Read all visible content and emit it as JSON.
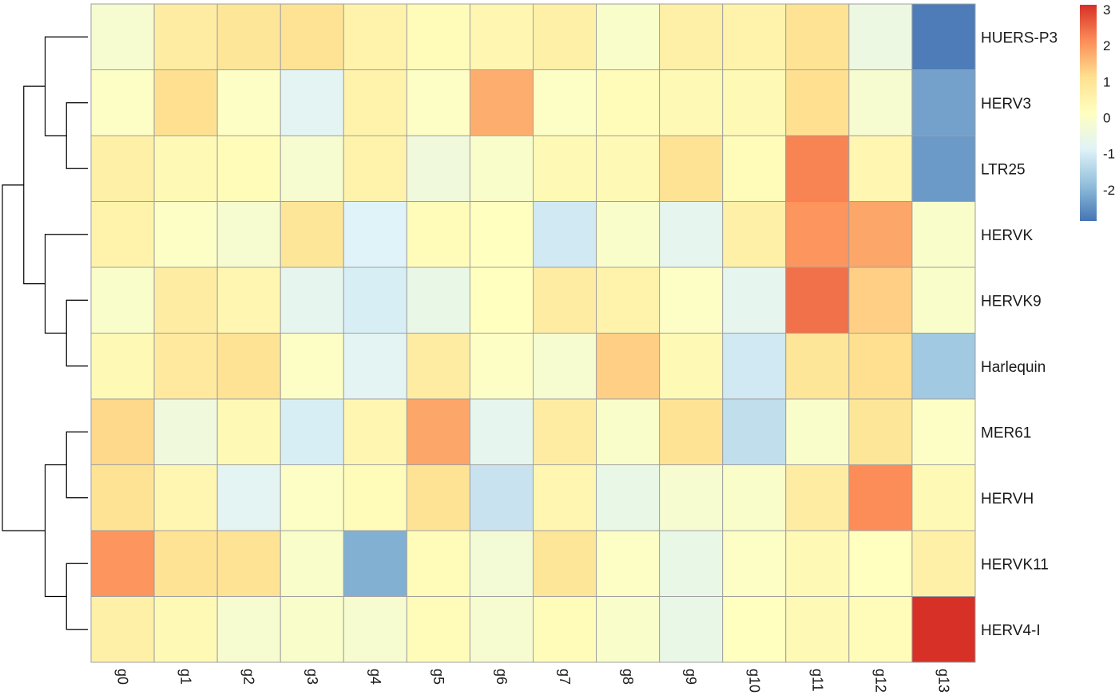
{
  "chart_data": {
    "type": "heatmap",
    "title": "",
    "xlabel": "",
    "ylabel": "",
    "columns": [
      "g0",
      "g1",
      "g2",
      "g3",
      "g4",
      "g5",
      "g6",
      "g7",
      "g8",
      "g9",
      "g10",
      "g11",
      "g12",
      "g13"
    ],
    "rows": [
      "HUERS-P3",
      "HERV3",
      "LTR25",
      "HERVK",
      "HERVK9",
      "Harlequin",
      "MER61",
      "HERVH",
      "HERVK11",
      "HERV4-I"
    ],
    "values": [
      [
        -0.3,
        0.6,
        0.8,
        0.9,
        0.4,
        0.1,
        0.3,
        0.5,
        -0.2,
        0.5,
        0.4,
        0.9,
        -0.6,
        -2.9
      ],
      [
        -0.1,
        1.0,
        -0.1,
        -0.9,
        0.4,
        -0.1,
        1.6,
        -0.1,
        0.1,
        0.2,
        0.2,
        1.0,
        -0.3,
        -2.4
      ],
      [
        0.5,
        0.2,
        0.1,
        -0.3,
        0.4,
        -0.5,
        -0.2,
        0.2,
        0.2,
        0.9,
        0.1,
        2.1,
        0.3,
        -2.5
      ],
      [
        0.4,
        -0.1,
        -0.3,
        0.8,
        -1.0,
        0.1,
        0.0,
        -1.2,
        -0.2,
        -0.8,
        0.5,
        1.9,
        1.7,
        -0.2
      ],
      [
        -0.2,
        0.6,
        0.3,
        -0.8,
        -1.1,
        -0.7,
        0.0,
        0.6,
        0.4,
        -0.1,
        -0.8,
        2.3,
        1.2,
        -0.2
      ],
      [
        0.2,
        0.7,
        0.9,
        -0.1,
        -0.9,
        0.6,
        -0.1,
        -0.3,
        1.2,
        0.2,
        -1.2,
        0.8,
        1.0,
        -1.8
      ],
      [
        1.1,
        -0.5,
        0.2,
        -1.1,
        0.3,
        1.7,
        -0.8,
        0.6,
        -0.2,
        0.9,
        -1.4,
        -0.2,
        0.8,
        -0.1
      ],
      [
        0.9,
        0.3,
        -0.9,
        -0.1,
        0.1,
        0.9,
        -1.3,
        0.3,
        -0.7,
        -0.3,
        -0.2,
        0.6,
        2.0,
        0.2
      ],
      [
        1.9,
        0.9,
        0.9,
        -0.2,
        -2.2,
        0.1,
        -0.4,
        0.8,
        -0.1,
        -0.7,
        -0.1,
        0.2,
        0.0,
        0.5
      ],
      [
        0.5,
        0.2,
        -0.3,
        -0.2,
        -0.3,
        0.1,
        -0.3,
        0.1,
        -0.2,
        -0.7,
        0.0,
        0.2,
        0.1,
        3.1
      ]
    ],
    "colorscale": {
      "min": -3,
      "max": 3,
      "stops": [
        "#4575b4",
        "#91bfdb",
        "#e0f3f8",
        "#ffffbf",
        "#fee090",
        "#fc8d59",
        "#d73027"
      ],
      "ticks": [
        3,
        2,
        1,
        0,
        -1,
        -2
      ]
    },
    "legend_position": "top-right",
    "grid": true,
    "row_dendrogram": true
  }
}
